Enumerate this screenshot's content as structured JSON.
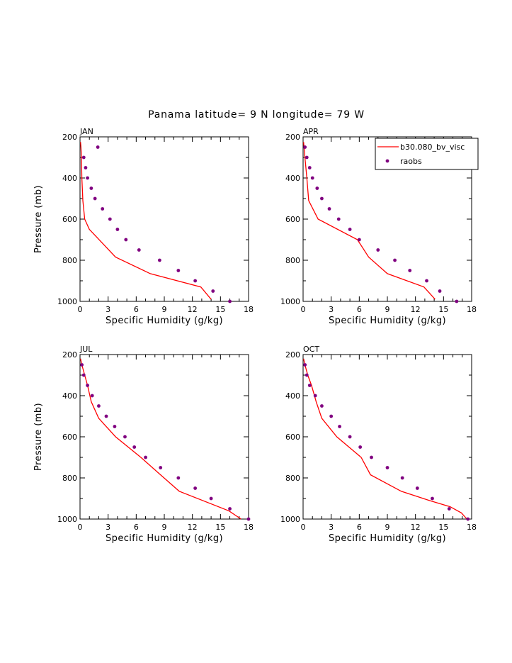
{
  "figure": {
    "title": "Panama  latitude= 9 N longitude= 79 W"
  },
  "legend": {
    "model_label": "b30.080_bv_visc",
    "obs_label": "raobs",
    "model_color": "#ff0000",
    "obs_color": "#800080"
  },
  "chart_data": [
    {
      "type": "line",
      "panel": "JAN",
      "xlabel": "Specific Humidity (g/kg)",
      "ylabel": "Pressure (mb)",
      "xlim": [
        0,
        18
      ],
      "ylim": [
        1000,
        200
      ],
      "xticks": [
        0,
        3,
        6,
        9,
        12,
        15,
        18
      ],
      "yticks": [
        200,
        400,
        600,
        800,
        1000
      ],
      "series": [
        {
          "name": "b30.080_bv_visc",
          "x": [
            0.05,
            0.1,
            0.15,
            0.2,
            0.3,
            0.5,
            1.0,
            3.8,
            7.5,
            12.9,
            14.0
          ],
          "y": [
            225,
            250,
            300,
            400,
            510,
            600,
            650,
            785,
            865,
            930,
            990
          ]
        },
        {
          "name": "raobs",
          "x": [
            1.9,
            0.4,
            0.6,
            0.8,
            1.2,
            1.6,
            2.4,
            3.2,
            4.0,
            4.9,
            6.3,
            8.5,
            10.5,
            12.3,
            14.2,
            16.0
          ],
          "y": [
            250,
            300,
            350,
            400,
            450,
            500,
            550,
            600,
            650,
            700,
            750,
            800,
            850,
            900,
            950,
            1000
          ]
        }
      ]
    },
    {
      "type": "line",
      "panel": "APR",
      "xlabel": "Specific Humidity (g/kg)",
      "ylabel": "",
      "xlim": [
        0,
        18
      ],
      "ylim": [
        1000,
        200
      ],
      "xticks": [
        0,
        3,
        6,
        9,
        12,
        15,
        18
      ],
      "yticks": [
        200,
        400,
        600,
        800,
        1000
      ],
      "series": [
        {
          "name": "b30.080_bv_visc",
          "x": [
            0.05,
            0.1,
            0.2,
            0.4,
            0.6,
            1.6,
            5.8,
            7.0,
            9.0,
            12.9,
            14.1
          ],
          "y": [
            225,
            250,
            300,
            400,
            510,
            600,
            700,
            785,
            865,
            930,
            990
          ]
        },
        {
          "name": "raobs",
          "x": [
            0.2,
            0.4,
            0.7,
            1.0,
            1.5,
            2.0,
            2.8,
            3.8,
            5.0,
            6.0,
            8.0,
            9.8,
            11.4,
            13.2,
            14.6,
            16.4
          ],
          "y": [
            250,
            300,
            350,
            400,
            450,
            500,
            550,
            600,
            650,
            700,
            750,
            800,
            850,
            900,
            950,
            1000
          ]
        }
      ]
    },
    {
      "type": "line",
      "panel": "JUL",
      "xlabel": "Specific Humidity (g/kg)",
      "ylabel": "Pressure (mb)",
      "xlim": [
        0,
        18
      ],
      "ylim": [
        1000,
        200
      ],
      "xticks": [
        0,
        3,
        6,
        9,
        12,
        15,
        18
      ],
      "yticks": [
        200,
        400,
        600,
        800,
        1000
      ],
      "series": [
        {
          "name": "b30.080_bv_visc",
          "x": [
            0.05,
            0.2,
            0.5,
            0.8,
            1.2,
            2.0,
            3.8,
            6.5,
            8.6,
            10.6,
            15.9,
            17.2
          ],
          "y": [
            220,
            250,
            300,
            350,
            430,
            510,
            600,
            700,
            785,
            865,
            960,
            1000
          ]
        },
        {
          "name": "raobs",
          "x": [
            0.2,
            0.4,
            0.8,
            1.3,
            2.0,
            2.8,
            3.7,
            4.8,
            5.8,
            7.0,
            8.6,
            10.5,
            12.3,
            14.0,
            16.0,
            18.0
          ],
          "y": [
            250,
            300,
            350,
            400,
            450,
            500,
            550,
            600,
            650,
            700,
            750,
            800,
            850,
            900,
            950,
            1000
          ]
        }
      ]
    },
    {
      "type": "line",
      "panel": "OCT",
      "xlabel": "Specific Humidity (g/kg)",
      "ylabel": "",
      "xlim": [
        0,
        18
      ],
      "ylim": [
        1000,
        200
      ],
      "xticks": [
        0,
        3,
        6,
        9,
        12,
        15,
        18
      ],
      "yticks": [
        200,
        400,
        600,
        800,
        1000
      ],
      "series": [
        {
          "name": "b30.080_bv_visc",
          "x": [
            0.05,
            0.2,
            0.5,
            0.9,
            1.4,
            2.0,
            3.6,
            6.2,
            7.2,
            10.5,
            13.5,
            15.7,
            16.9,
            17.5
          ],
          "y": [
            220,
            250,
            300,
            350,
            430,
            510,
            600,
            700,
            785,
            865,
            910,
            940,
            970,
            1000
          ]
        },
        {
          "name": "raobs",
          "x": [
            0.2,
            0.4,
            0.7,
            1.3,
            2.0,
            3.0,
            3.9,
            5.0,
            6.1,
            7.3,
            9.0,
            10.6,
            12.2,
            13.8,
            15.6,
            17.6
          ],
          "y": [
            250,
            300,
            350,
            400,
            450,
            500,
            550,
            600,
            650,
            700,
            750,
            800,
            850,
            900,
            950,
            1000
          ]
        }
      ]
    }
  ]
}
